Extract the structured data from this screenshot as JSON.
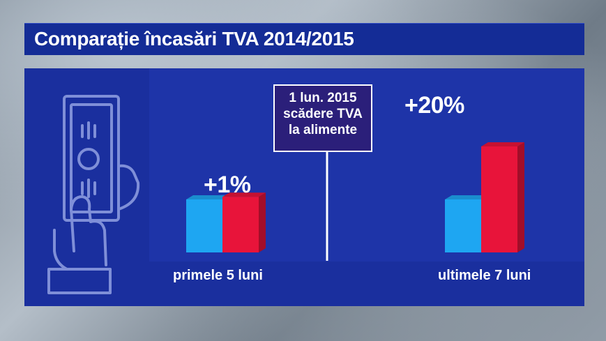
{
  "title": "Comparație încasări TVA 2014/2015",
  "annotation": {
    "lines": [
      "1 lun. 2015",
      "scădere TVA",
      "la alimente"
    ]
  },
  "icon": "hand-holding-banknote-icon",
  "colors": {
    "title_bg": "#142c96",
    "panel_bg": "#1a2f9e",
    "bar_2014": "#1ea6f2",
    "bar_2015": "#e8143a",
    "annotation_bg": "#2b1f7a"
  },
  "chart_data": {
    "type": "bar",
    "title": "Comparație încasări TVA 2014/2015",
    "categories": [
      "primele 5 luni",
      "ultimele 7 luni"
    ],
    "change_labels": [
      "+1%",
      "+20%"
    ],
    "series": [
      {
        "color": "#1ea6f2",
        "values": [
          100,
          100
        ]
      },
      {
        "color": "#e8143a",
        "values": [
          101,
          120
        ]
      }
    ],
    "xlabel": "",
    "ylabel": "",
    "grid": false,
    "legend": "none"
  }
}
